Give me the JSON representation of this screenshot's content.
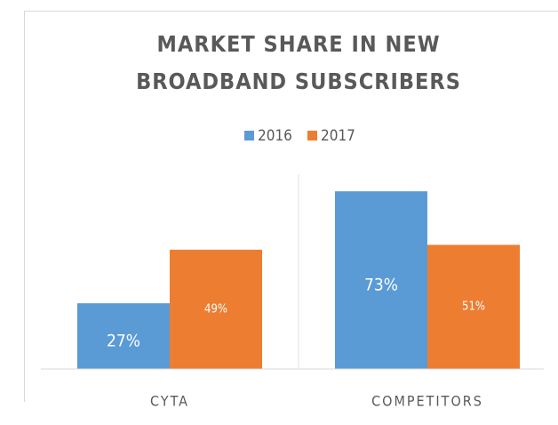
{
  "chart_data": {
    "type": "bar",
    "title": [
      "MARKET SHARE IN NEW",
      "BROADBAND SUBSCRIBERS"
    ],
    "categories": [
      "CYTA",
      "COMPETITORS"
    ],
    "series": [
      {
        "name": "2016",
        "color": "#5b9bd5",
        "values": [
          27,
          73
        ],
        "value_labels": [
          "27%",
          "73%"
        ]
      },
      {
        "name": "2017",
        "color": "#ed7d31",
        "values": [
          49,
          51
        ],
        "value_labels": [
          "49%",
          "51%"
        ]
      }
    ],
    "ylim": [
      0,
      80
    ],
    "legend": "top"
  }
}
